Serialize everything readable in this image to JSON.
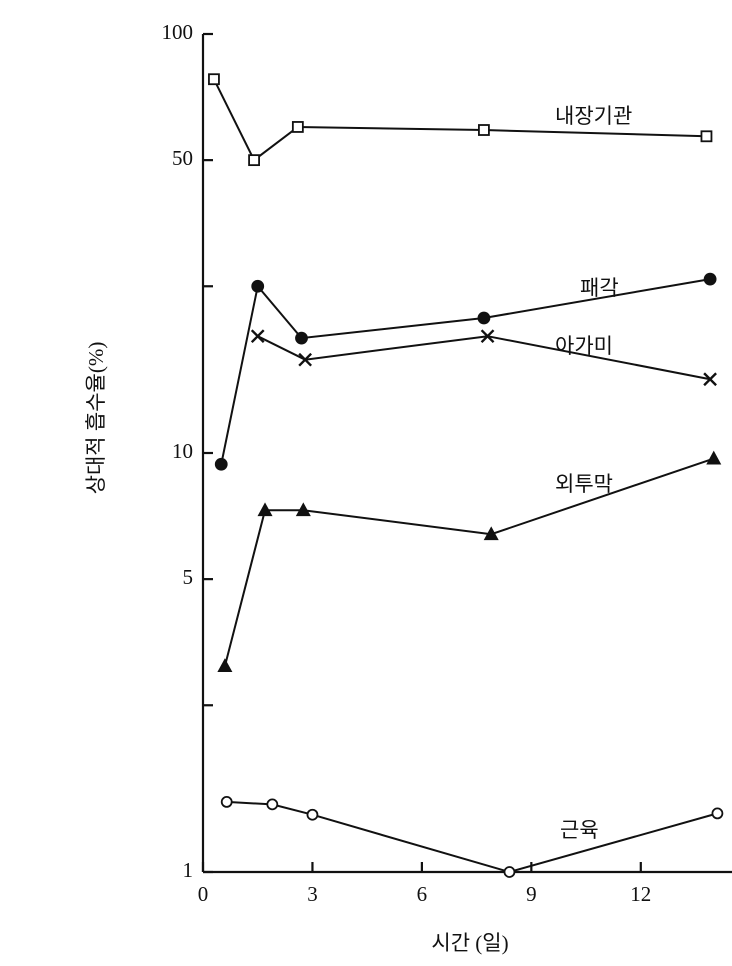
{
  "chart_data": {
    "type": "line",
    "xlabel": "시간 (일)",
    "ylabel": "상대적 흡수율(%)",
    "log_y": true,
    "xlim": [
      0,
      14.5
    ],
    "xticks": [
      0,
      3,
      6,
      9,
      12
    ],
    "ylim": [
      1,
      100
    ],
    "yticks": [
      1,
      5,
      10,
      50,
      100
    ],
    "yticks_minor": [
      2.5,
      25
    ],
    "series": [
      {
        "name": "내장기관",
        "color": "#111111",
        "marker": "square-open",
        "x": [
          0.3,
          1.4,
          2.6,
          7.7,
          13.8
        ],
        "values": [
          78,
          50,
          60,
          59,
          57
        ]
      },
      {
        "name": "패각",
        "color": "#111111",
        "marker": "circle-filled",
        "x": [
          0.5,
          1.5,
          2.7,
          7.7,
          13.9
        ],
        "values": [
          9.4,
          25,
          18.8,
          21,
          26
        ]
      },
      {
        "name": "아가미",
        "color": "#111111",
        "marker": "cross",
        "x": [
          1.5,
          2.8,
          7.8,
          13.9
        ],
        "values": [
          19,
          16.7,
          19,
          15
        ]
      },
      {
        "name": "외투막",
        "color": "#111111",
        "marker": "triangle-filled",
        "x": [
          0.6,
          1.7,
          2.75,
          7.9,
          14
        ],
        "values": [
          3.1,
          7.3,
          7.3,
          6.4,
          9.7
        ]
      },
      {
        "name": "근육",
        "color": "#111111",
        "marker": "circle-open",
        "x": [
          0.65,
          1.9,
          3.0,
          8.4,
          14.1
        ],
        "values": [
          1.47,
          1.45,
          1.37,
          1.0,
          1.38
        ]
      }
    ]
  }
}
